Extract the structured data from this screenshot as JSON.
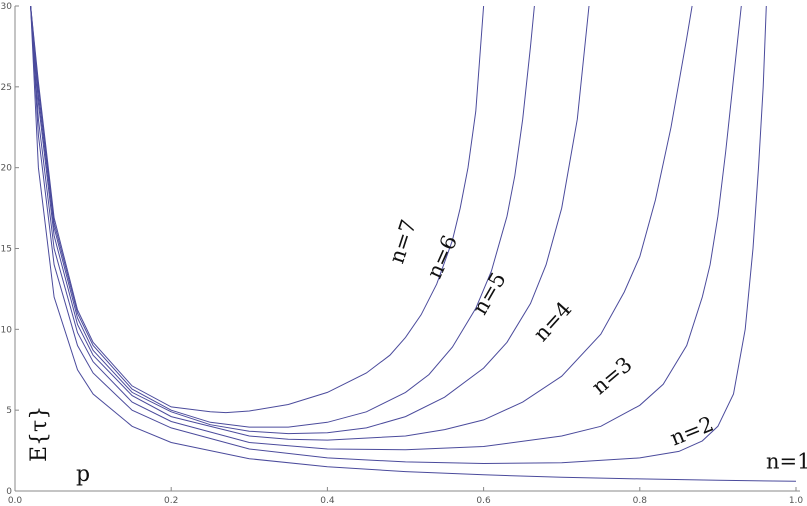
{
  "chart_data": {
    "type": "line",
    "xlabel": "p",
    "ylabel": "E{τ}",
    "xlim": [
      0,
      1
    ],
    "ylim": [
      0,
      30
    ],
    "x_ticks": [
      0.0,
      0.2,
      0.4,
      0.6,
      0.8,
      1.0
    ],
    "x_tick_labels": [
      "0.0",
      "0.2",
      "0.4",
      "0.6",
      "0.8",
      "1.0"
    ],
    "y_ticks": [
      0,
      5,
      10,
      15,
      20,
      25,
      30
    ],
    "y_tick_labels": [
      "0",
      "5",
      "10",
      "15",
      "20",
      "25",
      "30"
    ],
    "grid": false,
    "line_color": "#4b4b9c",
    "series": [
      {
        "name": "n=1",
        "values": [
          [
            0.02,
            30.0
          ],
          [
            0.03,
            20.0
          ],
          [
            0.05,
            12.0
          ],
          [
            0.08,
            7.5
          ],
          [
            0.1,
            6.0
          ],
          [
            0.15,
            4.0
          ],
          [
            0.2,
            3.0
          ],
          [
            0.3,
            2.0
          ],
          [
            0.4,
            1.5
          ],
          [
            0.5,
            1.2
          ],
          [
            0.6,
            1.0
          ],
          [
            0.7,
            0.85
          ],
          [
            0.8,
            0.75
          ],
          [
            0.9,
            0.67
          ],
          [
            1.0,
            0.6
          ]
        ]
      },
      {
        "name": "n=2",
        "values": [
          [
            0.02,
            30.0
          ],
          [
            0.03,
            22.0
          ],
          [
            0.05,
            14.0
          ],
          [
            0.08,
            9.0
          ],
          [
            0.1,
            7.3
          ],
          [
            0.15,
            5.0
          ],
          [
            0.2,
            3.9
          ],
          [
            0.3,
            2.6
          ],
          [
            0.4,
            2.05
          ],
          [
            0.5,
            1.8
          ],
          [
            0.6,
            1.7
          ],
          [
            0.7,
            1.75
          ],
          [
            0.8,
            2.05
          ],
          [
            0.85,
            2.45
          ],
          [
            0.88,
            3.1
          ],
          [
            0.9,
            4.0
          ],
          [
            0.92,
            6.0
          ],
          [
            0.935,
            10.0
          ],
          [
            0.945,
            15.0
          ],
          [
            0.952,
            20.0
          ],
          [
            0.958,
            25.0
          ],
          [
            0.962,
            30.0
          ]
        ]
      },
      {
        "name": "n=3",
        "values": [
          [
            0.02,
            30.0
          ],
          [
            0.03,
            23.0
          ],
          [
            0.05,
            15.0
          ],
          [
            0.08,
            9.8
          ],
          [
            0.1,
            8.0
          ],
          [
            0.15,
            5.5
          ],
          [
            0.2,
            4.3
          ],
          [
            0.3,
            3.0
          ],
          [
            0.4,
            2.6
          ],
          [
            0.5,
            2.55
          ],
          [
            0.6,
            2.75
          ],
          [
            0.7,
            3.4
          ],
          [
            0.75,
            4.0
          ],
          [
            0.8,
            5.3
          ],
          [
            0.83,
            6.6
          ],
          [
            0.86,
            9.0
          ],
          [
            0.88,
            12.0
          ],
          [
            0.89,
            14.0
          ],
          [
            0.9,
            17.0
          ],
          [
            0.91,
            21.0
          ],
          [
            0.92,
            25.5
          ],
          [
            0.93,
            30.0
          ]
        ]
      },
      {
        "name": "n=4",
        "values": [
          [
            0.02,
            30.0
          ],
          [
            0.03,
            24.0
          ],
          [
            0.05,
            15.8
          ],
          [
            0.08,
            10.3
          ],
          [
            0.1,
            8.4
          ],
          [
            0.15,
            5.9
          ],
          [
            0.2,
            4.6
          ],
          [
            0.3,
            3.4
          ],
          [
            0.35,
            3.2
          ],
          [
            0.4,
            3.15
          ],
          [
            0.5,
            3.4
          ],
          [
            0.55,
            3.8
          ],
          [
            0.6,
            4.4
          ],
          [
            0.65,
            5.5
          ],
          [
            0.7,
            7.1
          ],
          [
            0.75,
            9.7
          ],
          [
            0.78,
            12.3
          ],
          [
            0.8,
            14.5
          ],
          [
            0.82,
            18.0
          ],
          [
            0.84,
            22.5
          ],
          [
            0.86,
            28.0
          ],
          [
            0.867,
            30.0
          ]
        ]
      },
      {
        "name": "n=5",
        "values": [
          [
            0.02,
            30.0
          ],
          [
            0.03,
            24.5
          ],
          [
            0.05,
            16.3
          ],
          [
            0.08,
            10.7
          ],
          [
            0.1,
            8.7
          ],
          [
            0.15,
            6.1
          ],
          [
            0.2,
            4.9
          ],
          [
            0.25,
            4.1
          ],
          [
            0.3,
            3.7
          ],
          [
            0.35,
            3.55
          ],
          [
            0.4,
            3.6
          ],
          [
            0.45,
            3.9
          ],
          [
            0.5,
            4.6
          ],
          [
            0.55,
            5.8
          ],
          [
            0.6,
            7.6
          ],
          [
            0.63,
            9.2
          ],
          [
            0.66,
            11.6
          ],
          [
            0.68,
            14.0
          ],
          [
            0.7,
            17.5
          ],
          [
            0.72,
            23.0
          ],
          [
            0.735,
            30.0
          ]
        ]
      },
      {
        "name": "n=6",
        "values": [
          [
            0.02,
            30.0
          ],
          [
            0.03,
            25.0
          ],
          [
            0.05,
            16.6
          ],
          [
            0.08,
            11.0
          ],
          [
            0.1,
            9.0
          ],
          [
            0.15,
            6.3
          ],
          [
            0.2,
            5.0
          ],
          [
            0.25,
            4.25
          ],
          [
            0.3,
            3.95
          ],
          [
            0.35,
            3.95
          ],
          [
            0.4,
            4.25
          ],
          [
            0.45,
            4.9
          ],
          [
            0.5,
            6.1
          ],
          [
            0.53,
            7.2
          ],
          [
            0.56,
            8.9
          ],
          [
            0.59,
            11.3
          ],
          [
            0.61,
            13.6
          ],
          [
            0.63,
            17.0
          ],
          [
            0.64,
            19.5
          ],
          [
            0.65,
            23.0
          ],
          [
            0.66,
            27.5
          ],
          [
            0.665,
            30.0
          ]
        ]
      },
      {
        "name": "n=7",
        "values": [
          [
            0.02,
            30.0
          ],
          [
            0.03,
            25.3
          ],
          [
            0.05,
            16.9
          ],
          [
            0.08,
            11.2
          ],
          [
            0.1,
            9.2
          ],
          [
            0.15,
            6.5
          ],
          [
            0.2,
            5.2
          ],
          [
            0.25,
            4.9
          ],
          [
            0.27,
            4.85
          ],
          [
            0.3,
            4.95
          ],
          [
            0.35,
            5.35
          ],
          [
            0.4,
            6.1
          ],
          [
            0.45,
            7.3
          ],
          [
            0.48,
            8.4
          ],
          [
            0.5,
            9.5
          ],
          [
            0.52,
            10.9
          ],
          [
            0.54,
            12.8
          ],
          [
            0.56,
            15.5
          ],
          [
            0.57,
            17.5
          ],
          [
            0.58,
            20.0
          ],
          [
            0.59,
            23.5
          ],
          [
            0.6,
            30.0
          ]
        ]
      }
    ],
    "annotations": [
      {
        "text": "n=1",
        "x": 0.99,
        "y": 1.4,
        "rotation": 0
      },
      {
        "text": "n=2",
        "x": 0.87,
        "y": 3.3,
        "rotation": -22
      },
      {
        "text": "n=3",
        "x": 0.77,
        "y": 6.8,
        "rotation": -40
      },
      {
        "text": "n=4",
        "x": 0.695,
        "y": 10.2,
        "rotation": -48
      },
      {
        "text": "n=5",
        "x": 0.615,
        "y": 12.0,
        "rotation": -60
      },
      {
        "text": "n=6",
        "x": 0.555,
        "y": 14.3,
        "rotation": -66
      },
      {
        "text": "n=7",
        "x": 0.505,
        "y": 15.3,
        "rotation": -72
      }
    ]
  }
}
